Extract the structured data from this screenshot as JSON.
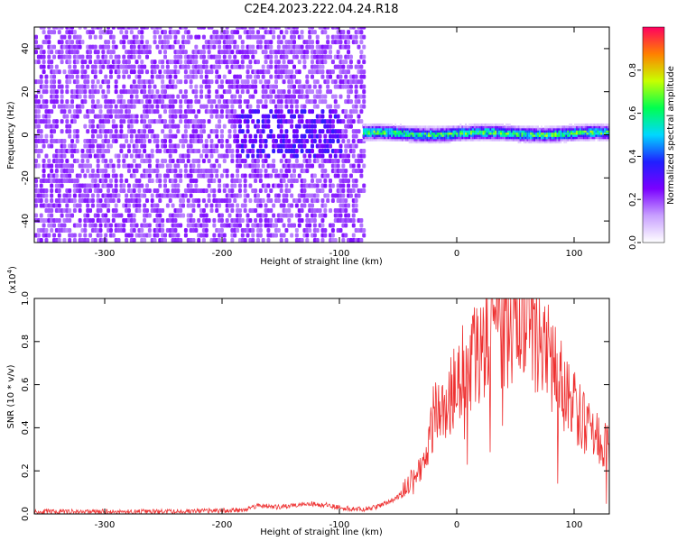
{
  "title": "C2E4.2023.222.04.24.R18",
  "chart_data": [
    {
      "type": "heatmap",
      "xlabel": "Height of straight line (km)",
      "ylabel": "Frequency (Hz)",
      "xlim": [
        -360,
        130
      ],
      "ylim": [
        -50,
        50
      ],
      "x_ticks": [
        "-300",
        "-200",
        "-100",
        "0",
        "100"
      ],
      "x_tick_values": [
        -300,
        -200,
        -100,
        0,
        100
      ],
      "y_ticks": [
        "-40",
        "-20",
        "0",
        "20",
        "40"
      ],
      "y_tick_values": [
        -40,
        -20,
        0,
        20,
        40
      ],
      "colorbar": {
        "label": "Normalized spectral amplitude",
        "range": [
          0,
          1
        ],
        "ticks": [
          "0.0",
          "0.2",
          "0.4",
          "0.6",
          "0.8"
        ],
        "tick_values": [
          0.0,
          0.2,
          0.4,
          0.6,
          0.8
        ],
        "colors": [
          "#ffffff",
          "#c8a0ff",
          "#7a00ff",
          "#2020ff",
          "#00d8ff",
          "#00ff50",
          "#c8ff00",
          "#ff8000",
          "#ff0060"
        ]
      },
      "regions": [
        {
          "x": [
            -360,
            -80
          ],
          "f": [
            -50,
            50
          ],
          "level": 0.12,
          "description": "broadband noise"
        },
        {
          "x": [
            -80,
            130
          ],
          "f": [
            -2,
            2
          ],
          "level": 0.6,
          "description": "narrow carrier line near 0 Hz"
        }
      ],
      "grid": false
    },
    {
      "type": "line",
      "xlabel": "Height of straight line (km)",
      "ylabel": "SNR (10 * v/v)",
      "y_multiplier": "(x10",
      "y_multiplier_exp": "4",
      "y_multiplier_close": ")",
      "xlim": [
        -360,
        130
      ],
      "ylim": [
        0,
        1
      ],
      "x_ticks": [
        "-300",
        "-200",
        "-100",
        "0",
        "100"
      ],
      "x_tick_values": [
        -300,
        -200,
        -100,
        0,
        100
      ],
      "y_ticks": [
        "0.0",
        "0.2",
        "0.4",
        "0.6",
        "0.8",
        "1.0"
      ],
      "y_tick_values": [
        0.0,
        0.2,
        0.4,
        0.6,
        0.8,
        1.0
      ],
      "series": [
        {
          "color": "#ee3030",
          "x": [
            -360,
            -300,
            -250,
            -200,
            -180,
            -170,
            -150,
            -130,
            -110,
            -100,
            -80,
            -70,
            -60,
            -50,
            -40,
            -30,
            -25,
            -20,
            -15,
            -10,
            -5,
            0,
            10,
            20,
            30,
            40,
            50,
            55,
            60,
            70,
            80,
            90,
            100,
            110,
            120,
            130
          ],
          "y": [
            0.01,
            0.01,
            0.01,
            0.015,
            0.02,
            0.04,
            0.03,
            0.05,
            0.04,
            0.03,
            0.02,
            0.03,
            0.05,
            0.08,
            0.15,
            0.2,
            0.3,
            0.45,
            0.55,
            0.48,
            0.55,
            0.65,
            0.72,
            0.78,
            0.83,
            0.88,
            0.9,
            0.92,
            0.88,
            0.8,
            0.7,
            0.6,
            0.5,
            0.4,
            0.35,
            0.3
          ]
        }
      ],
      "grid": false
    }
  ]
}
